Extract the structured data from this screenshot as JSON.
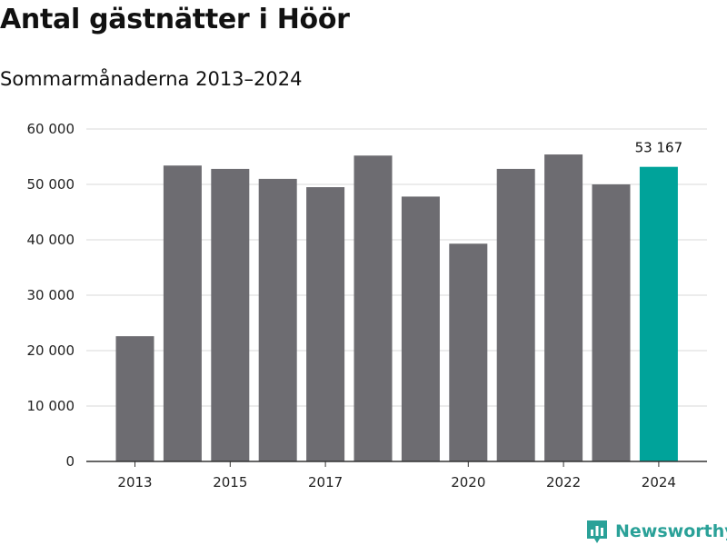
{
  "title": "Antal gästnätter i Höör",
  "subtitle": "Sommarmånaderna 2013–2024",
  "brand": "Newsworthy",
  "colors": {
    "bar": "#6d6c71",
    "highlight": "#00a39a",
    "grid": "#d9d9d9",
    "axis": "#333333",
    "brand": "#2aa198"
  },
  "chart_data": {
    "type": "bar",
    "title": "Antal gästnätter i Höör",
    "subtitle": "Sommarmånaderna 2013–2024",
    "xlabel": "",
    "ylabel": "",
    "categories": [
      "2013",
      "2014",
      "2015",
      "2016",
      "2017",
      "2018",
      "2019",
      "2020",
      "2021",
      "2022",
      "2023",
      "2024"
    ],
    "values": [
      22600,
      53400,
      52800,
      51000,
      49500,
      55200,
      47800,
      39300,
      52800,
      55400,
      50000,
      53167
    ],
    "highlight_index": 11,
    "ylim": [
      0,
      60000
    ],
    "yticks": [
      0,
      10000,
      20000,
      30000,
      40000,
      50000,
      60000
    ],
    "ytick_labels": [
      "0",
      "10 000",
      "20 000",
      "30 000",
      "40 000",
      "50 000",
      "60 000"
    ],
    "xtick_labels": [
      "2013",
      "",
      "2015",
      "",
      "2017",
      "",
      "",
      "2020",
      "",
      "2022",
      "",
      "2024"
    ],
    "annotations": [
      {
        "index": 11,
        "text": "53 167"
      }
    ],
    "grid": true,
    "legend": "none"
  }
}
